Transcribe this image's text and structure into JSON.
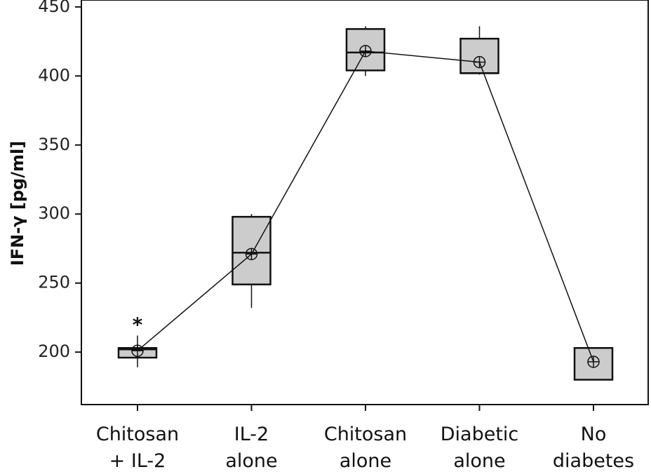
{
  "chart_data": {
    "type": "box",
    "ylabel": "IFN-γ [pg/ml]",
    "ylim": [
      162,
      455
    ],
    "yticks": [
      200,
      250,
      300,
      350,
      400,
      450
    ],
    "categories": [
      [
        "Chitosan",
        "+ IL-2"
      ],
      [
        "IL-2",
        "alone"
      ],
      [
        "Chitosan",
        "alone"
      ],
      [
        "Diabetic",
        "alone"
      ],
      [
        "No",
        "diabetes"
      ]
    ],
    "boxes": [
      {
        "whisker_low": 189,
        "q1": 196,
        "median": 202,
        "q3": 203,
        "whisker_high": 212,
        "mean": 201,
        "annotation": "*"
      },
      {
        "whisker_low": 232,
        "q1": 249,
        "median": 272,
        "q3": 298,
        "whisker_high": 300,
        "mean": 271,
        "annotation": ""
      },
      {
        "whisker_low": 400,
        "q1": 404,
        "median": 417,
        "q3": 434,
        "whisker_high": 436,
        "mean": 418,
        "annotation": ""
      },
      {
        "whisker_low": 401,
        "q1": 402,
        "median": 402,
        "q3": 427,
        "whisker_high": 436,
        "mean": 410,
        "annotation": ""
      },
      {
        "whisker_low": 180,
        "q1": 180,
        "median": 203,
        "q3": 203,
        "whisker_high": 203,
        "mean": 193,
        "annotation": ""
      }
    ],
    "mean_line": true,
    "box_fill": "#cccccc",
    "line_color": "#111111",
    "legend": "none",
    "grid": false
  }
}
